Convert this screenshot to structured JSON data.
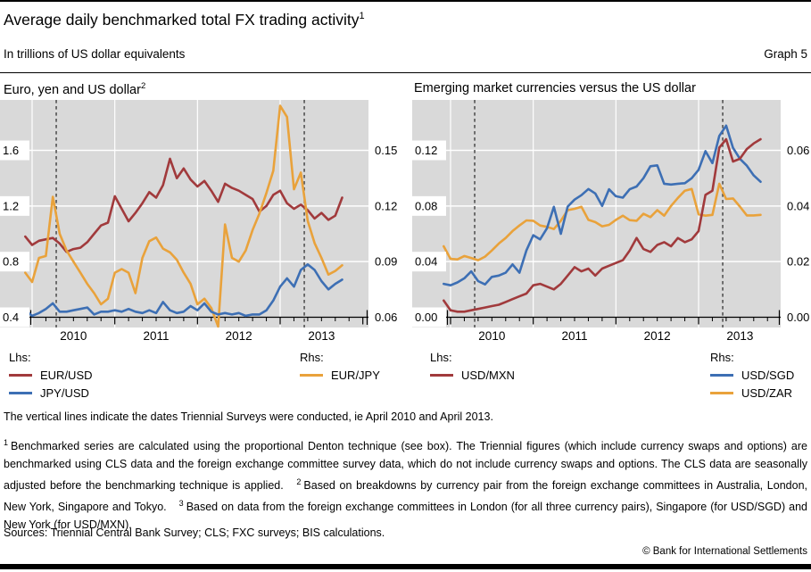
{
  "header": {
    "title": "Average daily benchmarked total FX trading activity",
    "title_sup": "1",
    "subtitle": "In trillions of US dollar equivalents",
    "graph_label": "Graph 5"
  },
  "colors": {
    "red": "#a13a3c",
    "blue": "#3d6fb4",
    "orange": "#e9a23b",
    "plot_background": "#d9d9d9",
    "gridline": "#ffffff",
    "dashed_line": "#333333"
  },
  "chart_data": [
    {
      "type": "line",
      "title": "Euro, yen and US dollar",
      "title_sup": "2",
      "x_start": 2009.9167,
      "x_step": 0.0833333,
      "x_ticks": [
        {
          "label": "2010",
          "year": 2010
        },
        {
          "label": "2011",
          "year": 2011
        },
        {
          "label": "2012",
          "year": 2012
        },
        {
          "label": "2013",
          "year": 2013
        }
      ],
      "lhs_ticks": [
        {
          "label": "0.4",
          "value": 0.4
        },
        {
          "label": "0.8",
          "value": 0.8
        },
        {
          "label": "1.2",
          "value": 1.2
        },
        {
          "label": "1.6",
          "value": 1.6
        }
      ],
      "rhs_ticks": [
        {
          "label": "0.06",
          "value": 0.06
        },
        {
          "label": "0.09",
          "value": 0.09
        },
        {
          "label": "0.12",
          "value": 0.12
        },
        {
          "label": "0.15",
          "value": 0.15
        }
      ],
      "vlines_dashed": [
        2010.2917,
        2013.2917
      ],
      "legend": {
        "lhs_label": "Lhs:",
        "rhs_label": "Rhs:"
      },
      "draw_order": [
        0,
        2,
        1
      ],
      "series": [
        {
          "name": "EUR/USD",
          "axis": "lhs",
          "color": "#a13a3c",
          "values": [
            0.98,
            0.92,
            0.95,
            0.96,
            0.97,
            0.93,
            0.87,
            0.89,
            0.9,
            0.94,
            1.0,
            1.06,
            1.08,
            1.27,
            1.18,
            1.09,
            1.15,
            1.22,
            1.3,
            1.26,
            1.35,
            1.54,
            1.4,
            1.47,
            1.39,
            1.34,
            1.38,
            1.31,
            1.23,
            1.36,
            1.33,
            1.31,
            1.28,
            1.25,
            1.16,
            1.2,
            1.28,
            1.31,
            1.22,
            1.18,
            1.21,
            1.17,
            1.11,
            1.15,
            1.1,
            1.13,
            1.26
          ]
        },
        {
          "name": "JPY/USD",
          "axis": "lhs",
          "color": "#3d6fb4",
          "values": [
            0.45,
            0.41,
            0.43,
            0.46,
            0.5,
            0.44,
            0.44,
            0.45,
            0.46,
            0.47,
            0.42,
            0.44,
            0.44,
            0.45,
            0.44,
            0.46,
            0.44,
            0.43,
            0.45,
            0.43,
            0.51,
            0.45,
            0.43,
            0.44,
            0.48,
            0.45,
            0.5,
            0.44,
            0.42,
            0.43,
            0.42,
            0.43,
            0.41,
            0.42,
            0.42,
            0.45,
            0.52,
            0.62,
            0.68,
            0.62,
            0.74,
            0.78,
            0.74,
            0.66,
            0.6,
            0.64,
            0.67
          ]
        },
        {
          "name": "EUR/JPY",
          "axis": "rhs",
          "color": "#e9a23b",
          "values": [
            0.084,
            0.079,
            0.092,
            0.093,
            0.125,
            0.105,
            0.096,
            0.09,
            0.084,
            0.078,
            0.073,
            0.067,
            0.07,
            0.084,
            0.086,
            0.084,
            0.073,
            0.092,
            0.101,
            0.103,
            0.097,
            0.095,
            0.091,
            0.084,
            0.078,
            0.067,
            0.07,
            0.065,
            0.055,
            0.11,
            0.092,
            0.09,
            0.096,
            0.107,
            0.116,
            0.127,
            0.139,
            0.174,
            0.168,
            0.129,
            0.138,
            0.112,
            0.1,
            0.092,
            0.083,
            0.085,
            0.088
          ]
        }
      ]
    },
    {
      "type": "line",
      "title": "Emerging market currencies versus the US dollar",
      "x_start": 2009.9167,
      "x_step": 0.0833333,
      "x_ticks": [
        {
          "label": "2010",
          "year": 2010
        },
        {
          "label": "2011",
          "year": 2011
        },
        {
          "label": "2012",
          "year": 2012
        },
        {
          "label": "2013",
          "year": 2013
        }
      ],
      "lhs_ticks": [
        {
          "label": "0.00",
          "value": 0.0
        },
        {
          "label": "0.04",
          "value": 0.04
        },
        {
          "label": "0.08",
          "value": 0.08
        },
        {
          "label": "0.12",
          "value": 0.12
        }
      ],
      "rhs_ticks": [
        {
          "label": "0.00",
          "value": 0.0
        },
        {
          "label": "0.02",
          "value": 0.02
        },
        {
          "label": "0.04",
          "value": 0.04
        },
        {
          "label": "0.06",
          "value": 0.06
        }
      ],
      "vlines_dashed": [
        2010.2917,
        2013.2917
      ],
      "legend": {
        "lhs_label": "Lhs:",
        "rhs_label": "Rhs:"
      },
      "draw_order": [
        2,
        1,
        0
      ],
      "series": [
        {
          "name": "USD/MXN",
          "axis": "lhs",
          "color": "#a13a3c",
          "values": [
            0.012,
            0.005,
            0.004,
            0.004,
            0.005,
            0.006,
            0.007,
            0.008,
            0.009,
            0.011,
            0.013,
            0.015,
            0.017,
            0.023,
            0.024,
            0.022,
            0.02,
            0.024,
            0.03,
            0.036,
            0.033,
            0.035,
            0.03,
            0.035,
            0.037,
            0.039,
            0.041,
            0.048,
            0.057,
            0.049,
            0.047,
            0.052,
            0.054,
            0.051,
            0.057,
            0.054,
            0.056,
            0.062,
            0.088,
            0.091,
            0.122,
            0.128,
            0.112,
            0.114,
            0.121,
            0.125,
            0.128
          ]
        },
        {
          "name": "USD/SGD",
          "axis": "rhs",
          "color": "#3d6fb4",
          "values": [
            0.012,
            0.0115,
            0.0125,
            0.014,
            0.0165,
            0.013,
            0.0118,
            0.0145,
            0.015,
            0.016,
            0.019,
            0.016,
            0.024,
            0.0295,
            0.028,
            0.032,
            0.0397,
            0.03,
            0.0398,
            0.0423,
            0.0439,
            0.0461,
            0.0445,
            0.04,
            0.046,
            0.0435,
            0.043,
            0.046,
            0.047,
            0.05,
            0.0543,
            0.0546,
            0.048,
            0.0477,
            0.048,
            0.0482,
            0.05,
            0.053,
            0.0597,
            0.0554,
            0.0652,
            0.0689,
            0.0609,
            0.057,
            0.0545,
            0.051,
            0.0487
          ]
        },
        {
          "name": "USD/ZAR",
          "axis": "rhs",
          "color": "#e9a23b",
          "values": [
            0.0255,
            0.021,
            0.0208,
            0.022,
            0.0213,
            0.0205,
            0.0218,
            0.024,
            0.0265,
            0.0285,
            0.031,
            0.033,
            0.0348,
            0.0347,
            0.033,
            0.0325,
            0.0317,
            0.0347,
            0.0385,
            0.039,
            0.0397,
            0.035,
            0.0342,
            0.0327,
            0.0332,
            0.035,
            0.0365,
            0.0349,
            0.0347,
            0.0372,
            0.036,
            0.0385,
            0.0365,
            0.04,
            0.0429,
            0.0455,
            0.0461,
            0.037,
            0.0365,
            0.0368,
            0.048,
            0.0425,
            0.0427,
            0.0398,
            0.0366,
            0.0366,
            0.0368
          ]
        }
      ]
    }
  ],
  "footnotes": {
    "vertical_note": "The vertical lines indicate the dates Triennial Surveys were conducted, ie April 2010 and April 2013.",
    "segments": [
      {
        "sup": "1",
        "text": "Benchmarked series are calculated using the proportional Denton technique (see box). The Triennial figures (which include currency swaps and options) are benchmarked using CLS data and the foreign exchange committee survey data, which do not include currency swaps and options. The CLS data are seasonally adjusted before the benchmarking technique is applied."
      },
      {
        "sup": "2",
        "text": "Based on breakdowns by currency pair from the foreign exchange committees in Australia, London, New York, Singapore and Tokyo."
      },
      {
        "sup": "3",
        "text": "Based on data from the foreign exchange committees in London (for all three currency pairs), Singapore (for USD/SGD) and New York (for USD/MXN)."
      }
    ],
    "sources": "Sources: Triennial Central Bank Survey; CLS; FXC surveys; BIS calculations.",
    "copyright": "© Bank for International Settlements"
  }
}
